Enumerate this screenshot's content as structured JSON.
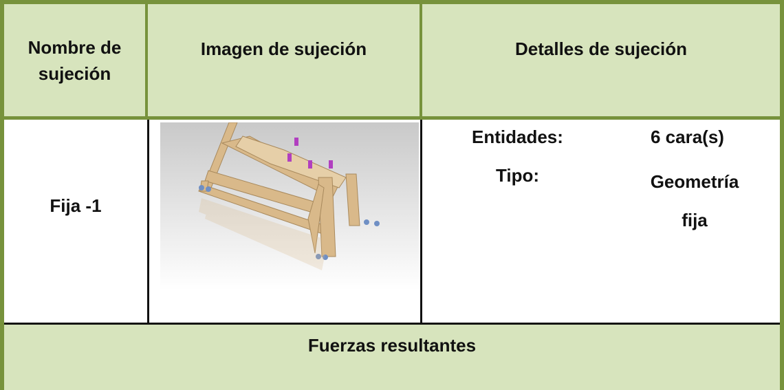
{
  "table": {
    "header": [
      "Nombre de sujeción",
      "Imagen de sujeción",
      "Detalles de sujeción"
    ],
    "row": {
      "name": "Fija -1",
      "details": [
        {
          "label": "Entidades:",
          "value": "6 cara(s)"
        },
        {
          "label": "Tipo:",
          "value": "Geometría fija"
        }
      ]
    },
    "footer": "Fuerzas resultantes"
  }
}
